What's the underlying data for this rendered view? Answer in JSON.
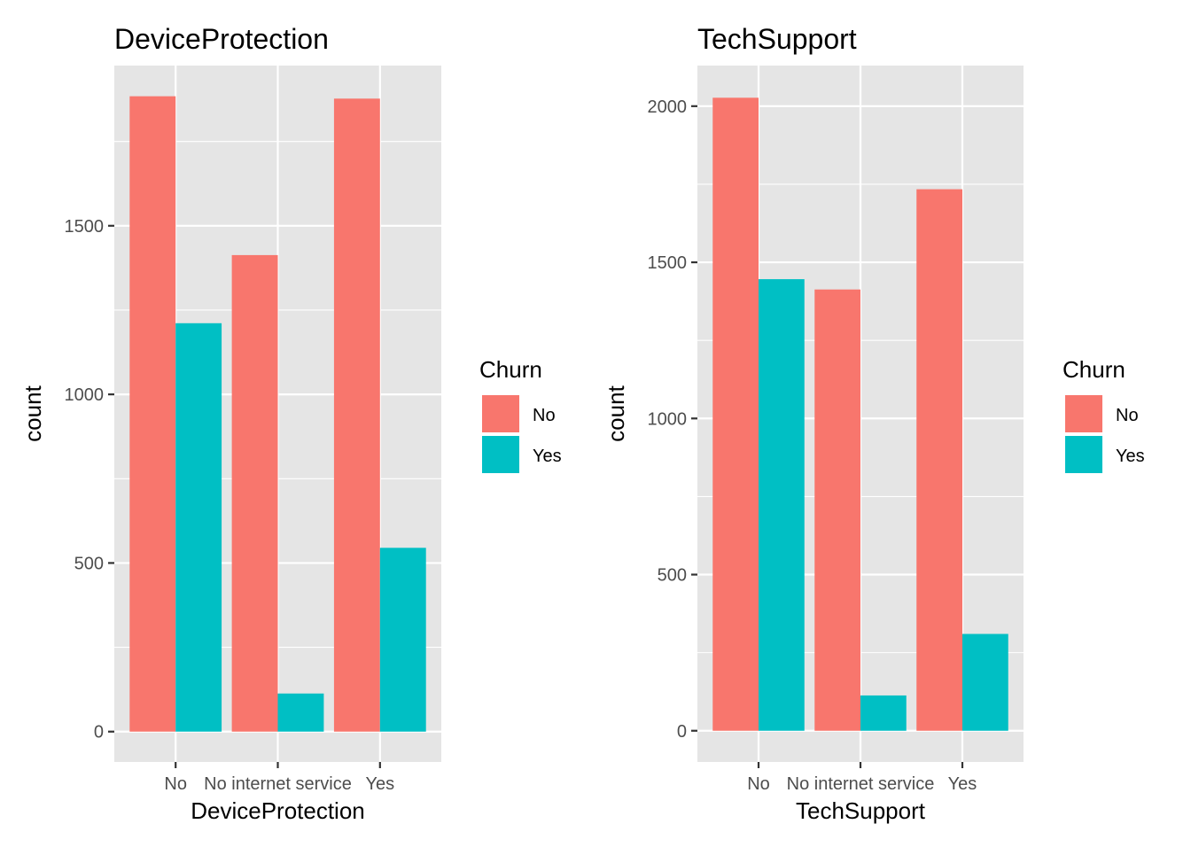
{
  "colors": {
    "panel_bg": "#e5e5e5",
    "grid": "#ffffff",
    "no": "#f8766d",
    "yes": "#00bfc4",
    "tick_text": "#4d4d4d"
  },
  "chart_data": [
    {
      "type": "bar",
      "title": "DeviceProtection",
      "xlabel": "DeviceProtection",
      "ylabel": "count",
      "categories": [
        "No",
        "No internet service",
        "Yes"
      ],
      "yticks": [
        0,
        500,
        1000,
        1500
      ],
      "ylim": [
        -90,
        1975
      ],
      "grid": true,
      "series": [
        {
          "name": "No",
          "values": [
            1884,
            1413,
            1877
          ]
        },
        {
          "name": "Yes",
          "values": [
            1211,
            113,
            545
          ]
        }
      ],
      "legend": {
        "title": "Churn",
        "position": "right",
        "entries": [
          "No",
          "Yes"
        ]
      }
    },
    {
      "type": "bar",
      "title": "TechSupport",
      "xlabel": "TechSupport",
      "ylabel": "count",
      "categories": [
        "No",
        "No internet service",
        "Yes"
      ],
      "yticks": [
        0,
        500,
        1000,
        1500,
        2000
      ],
      "ylim": [
        -100,
        2130
      ],
      "grid": true,
      "series": [
        {
          "name": "No",
          "values": [
            2027,
            1413,
            1734
          ]
        },
        {
          "name": "Yes",
          "values": [
            1446,
            113,
            310
          ]
        }
      ],
      "legend": {
        "title": "Churn",
        "position": "right",
        "entries": [
          "No",
          "Yes"
        ]
      }
    }
  ]
}
